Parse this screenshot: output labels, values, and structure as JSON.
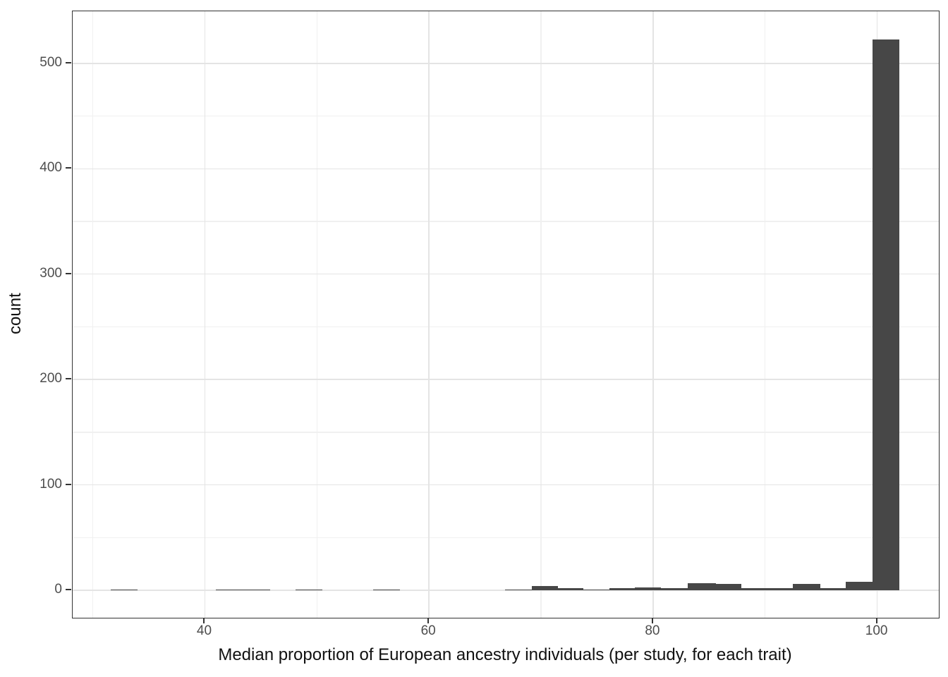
{
  "figure": {
    "x_axis_title": "Median proportion of European ancestry individuals (per study, for each trait)",
    "y_axis_title": "count"
  },
  "colors": {
    "bar_fill": "#474747",
    "panel_border": "#333333",
    "grid_major": "#e4e4e4",
    "grid_minor": "#f0f0f0",
    "tick_mark": "#333333",
    "tick_label": "#4d4d4d",
    "axis_title": "#111111",
    "background": "#ffffff"
  },
  "chart_data": {
    "type": "bar",
    "subtype": "histogram",
    "title": "",
    "xlabel": "Median proportion of European ancestry individuals (per study, for each trait)",
    "ylabel": "count",
    "xlim": [
      28.2,
      105.5
    ],
    "ylim": [
      -26.1,
      549.5
    ],
    "x_ticks": [
      40,
      60,
      80,
      100
    ],
    "x_minor_ticks": [
      30,
      50,
      70,
      90
    ],
    "y_ticks": [
      0,
      100,
      200,
      300,
      400,
      500
    ],
    "y_minor_ticks": [
      50,
      150,
      250,
      350,
      450
    ],
    "grid": true,
    "legend": false,
    "binwidth": 2.4,
    "bins": [
      {
        "x0": 31.6,
        "x1": 34.0,
        "count": 1
      },
      {
        "x0": 41.0,
        "x1": 43.4,
        "count": 1
      },
      {
        "x0": 43.4,
        "x1": 45.8,
        "count": 1
      },
      {
        "x0": 48.1,
        "x1": 50.5,
        "count": 1
      },
      {
        "x0": 55.0,
        "x1": 57.4,
        "count": 1
      },
      {
        "x0": 66.8,
        "x1": 69.2,
        "count": 1
      },
      {
        "x0": 69.2,
        "x1": 71.5,
        "count": 4
      },
      {
        "x0": 71.5,
        "x1": 73.8,
        "count": 2
      },
      {
        "x0": 73.8,
        "x1": 76.1,
        "count": 1
      },
      {
        "x0": 76.1,
        "x1": 78.4,
        "count": 2
      },
      {
        "x0": 78.4,
        "x1": 80.7,
        "count": 3
      },
      {
        "x0": 80.7,
        "x1": 83.1,
        "count": 2
      },
      {
        "x0": 83.1,
        "x1": 85.6,
        "count": 7
      },
      {
        "x0": 85.6,
        "x1": 87.9,
        "count": 6
      },
      {
        "x0": 87.9,
        "x1": 90.2,
        "count": 2
      },
      {
        "x0": 90.2,
        "x1": 92.5,
        "count": 2
      },
      {
        "x0": 92.5,
        "x1": 94.9,
        "count": 6
      },
      {
        "x0": 94.9,
        "x1": 97.2,
        "count": 2
      },
      {
        "x0": 97.2,
        "x1": 99.6,
        "count": 8
      },
      {
        "x0": 99.6,
        "x1": 102.0,
        "count": 523
      }
    ]
  }
}
